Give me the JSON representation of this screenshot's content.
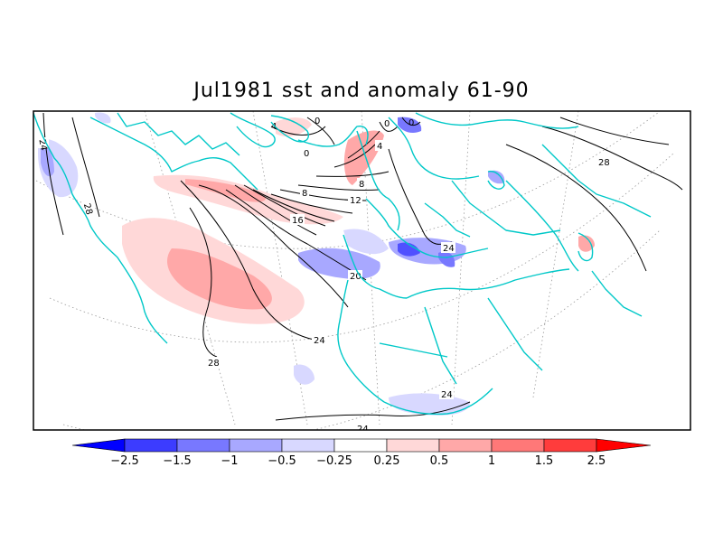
{
  "title": "Jul1981 sst and anomaly 61-90",
  "colorbar": {
    "labels": [
      "−2.5",
      "−1.5",
      "−1",
      "−0.5",
      "−0.25",
      "0.25",
      "0.5",
      "1",
      "1.5",
      "2.5"
    ],
    "colors": [
      "#0000ff",
      "#3c3cff",
      "#7878ff",
      "#a8a8ff",
      "#d8d8ff",
      "#ffffff",
      "#ffd8d8",
      "#ffa8a8",
      "#ff7878",
      "#ff3c3c",
      "#ff0000"
    ]
  },
  "contour_labels": [
    "24",
    "28",
    "0",
    "0",
    "4",
    "0",
    "0",
    "4",
    "8",
    "8",
    "12",
    "16",
    "20",
    "24",
    "24",
    "28",
    "24",
    "28",
    "24"
  ],
  "coastline_color": "#00c8c8"
}
